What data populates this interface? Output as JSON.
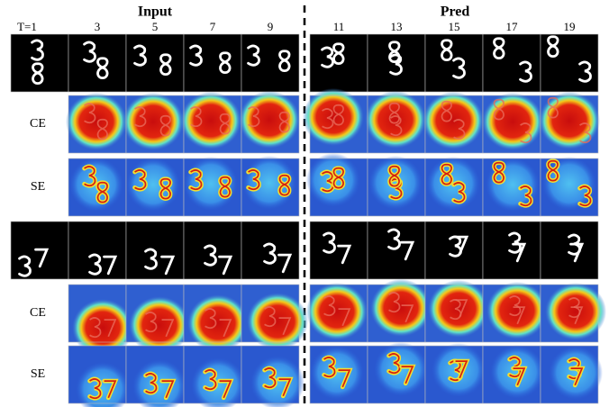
{
  "header": {
    "input": "Input",
    "pred": "Pred"
  },
  "frames": [
    "T=1",
    "3",
    "5",
    "7",
    "9",
    "11",
    "13",
    "15",
    "17",
    "19"
  ],
  "row_labels": [
    "CE",
    "SE",
    "CE",
    "SE"
  ]
}
